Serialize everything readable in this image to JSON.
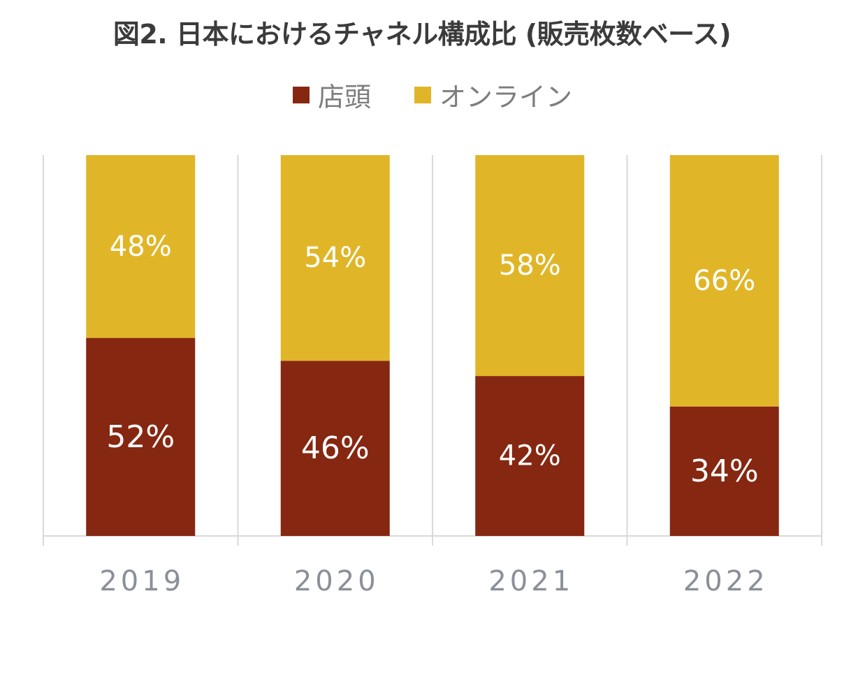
{
  "chart_data": {
    "type": "bar",
    "stacked": true,
    "percent": true,
    "title": "図2. 日本におけるチャネル構成比 (販売枚数ベース)",
    "categories": [
      "2019",
      "2020",
      "2021",
      "2022"
    ],
    "series": [
      {
        "name": "店頭",
        "values": [
          52,
          46,
          42,
          34
        ],
        "labels": [
          "52%",
          "46%",
          "42%",
          "34%"
        ],
        "color": "#862711"
      },
      {
        "name": "オンライン",
        "values": [
          48,
          54,
          58,
          66
        ],
        "labels": [
          "48%",
          "54%",
          "58%",
          "66%"
        ],
        "color": "#e0b628"
      }
    ],
    "ylim": [
      0,
      100
    ],
    "legend": "top-center",
    "grid": true,
    "grid_color": "#d9d9d9",
    "tick_label_color": "#8a8f99",
    "title_color": "#3b3b3b"
  }
}
